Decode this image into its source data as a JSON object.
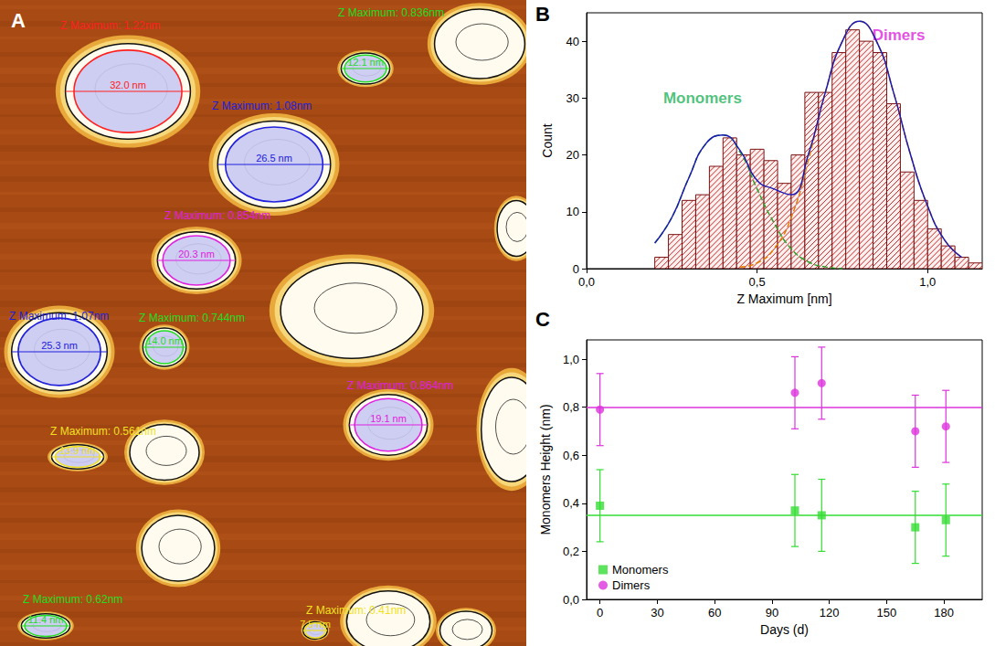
{
  "chart_data": [
    {
      "type": "afm_image",
      "panel_label": "A",
      "particles": [
        {
          "height_label": "Z Maximum: 1.22nm",
          "diameter_label": "32.0 nm",
          "color": "#ff2020"
        },
        {
          "height_label": "Z Maximum: 0.836nm",
          "diameter_label": "12.1 nm",
          "color": "#22dd22"
        },
        {
          "height_label": "Z Maximum: 1.08nm",
          "diameter_label": "26.5 nm",
          "color": "#2020dd"
        },
        {
          "height_label": "Z Maximum: 0.854nm",
          "diameter_label": "20.3 nm",
          "color": "#e020e0"
        },
        {
          "height_label": "Z Maximum: 1.07nm",
          "diameter_label": "25.3 nm",
          "color": "#2020dd"
        },
        {
          "height_label": "Z Maximum: 0.744nm",
          "diameter_label": "14.0 nm",
          "color": "#22dd22"
        },
        {
          "height_label": "Z Maximum: 0.864nm",
          "diameter_label": "19.1 nm",
          "color": "#e020e0"
        },
        {
          "height_label": "Z Maximum: 0.561nm",
          "diameter_label": "13.9 nm",
          "color": "#f0e020"
        },
        {
          "height_label": "Z Maximum: 0.62nm",
          "diameter_label": "11.4 nm",
          "color": "#22dd22"
        },
        {
          "height_label": "Z Maximum: 0.41nm",
          "diameter_label": "7.5 nm",
          "color": "#f0e020"
        }
      ]
    },
    {
      "type": "histogram",
      "panel_label": "B",
      "x_label": "Z Maximum [nm]",
      "y_label": "Count",
      "bins": [
        0.2,
        0.24,
        0.28,
        0.32,
        0.36,
        0.4,
        0.44,
        0.48,
        0.52,
        0.56,
        0.6,
        0.64,
        0.68,
        0.72,
        0.76,
        0.8,
        0.84,
        0.88,
        0.92,
        0.96,
        1.0,
        1.04,
        1.08,
        1.12,
        1.16
      ],
      "values": [
        2,
        6,
        12,
        13,
        18,
        23,
        20,
        21,
        19,
        15,
        20,
        31,
        31,
        38,
        42,
        40,
        38,
        29,
        17,
        12,
        7,
        4,
        2,
        1
      ],
      "color": "#c62828",
      "xlim": [
        0,
        1.16
      ],
      "xticks": [
        {
          "value": 0,
          "label": "0,0"
        },
        {
          "value": 0.5,
          "label": "0,5"
        },
        {
          "value": 1,
          "label": "1,0"
        }
      ],
      "ylim": [
        0,
        45
      ],
      "yticks": [
        0,
        10,
        20,
        30,
        40
      ],
      "grid": false,
      "fits": [
        {
          "x": [
            0.2,
            0.25,
            0.3,
            0.35,
            0.4,
            0.45,
            0.5,
            0.55,
            0.6,
            0.65,
            0.7,
            0.75
          ],
          "values": [
            4.5,
            9,
            16,
            22,
            23.5,
            20.5,
            14,
            8,
            3.5,
            1.2,
            0.3,
            0
          ],
          "color": "#2ca02c",
          "line_style": "dashed"
        },
        {
          "x": [
            0.45,
            0.5,
            0.55,
            0.6,
            0.65,
            0.7,
            0.75,
            0.8,
            0.85,
            0.9,
            0.95,
            1.0,
            1.05,
            1.1
          ],
          "values": [
            0.3,
            1,
            3.5,
            9,
            19,
            31,
            40,
            43.5,
            40,
            31,
            20,
            11,
            5,
            2
          ],
          "color": "#e07b00",
          "line_style": "dashed"
        },
        {
          "x": [
            0.2,
            0.25,
            0.3,
            0.35,
            0.4,
            0.45,
            0.5,
            0.55,
            0.6,
            0.65,
            0.7,
            0.75,
            0.8,
            0.85,
            0.9,
            0.95,
            1.0,
            1.05,
            1.1
          ],
          "values": [
            4.5,
            9,
            16,
            22,
            23.5,
            20.8,
            15.5,
            14,
            13,
            20,
            31,
            40,
            43.5,
            40,
            31,
            20,
            11,
            5,
            2
          ],
          "color": "#1a1ab4",
          "line_style": "solid"
        }
      ],
      "annotations": [
        {
          "text": "Monomers",
          "x": 0.34,
          "y": 30,
          "color": "#1fb35a"
        },
        {
          "text": "Dimers",
          "x": 0.915,
          "y": 41,
          "color": "#dd22dd"
        }
      ]
    },
    {
      "type": "scatter",
      "panel_label": "C",
      "x_label": "Days (d)",
      "y_label": "Monomers Height (nm)",
      "x": [
        0,
        102,
        116,
        165,
        181
      ],
      "series": [
        {
          "name": "Monomers",
          "color": "#33dd33",
          "marker": "square",
          "values": [
            0.39,
            0.37,
            0.35,
            0.3,
            0.33
          ],
          "errors": [
            0.15,
            0.15,
            0.15,
            0.15,
            0.15
          ],
          "mean": 0.355
        },
        {
          "name": "Dimers",
          "color": "#dd33dd",
          "marker": "circle",
          "values": [
            0.79,
            0.86,
            0.9,
            0.7,
            0.72
          ],
          "errors": [
            0.15,
            0.15,
            0.15,
            0.15,
            0.15
          ],
          "mean": 0.8
        }
      ],
      "xlim": [
        -7,
        200
      ],
      "xticks": [
        0,
        30,
        60,
        90,
        120,
        150,
        180
      ],
      "ylim": [
        0,
        1.08
      ],
      "yticks": [
        {
          "value": 0,
          "label": "0,0"
        },
        {
          "value": 0.2,
          "label": "0,2"
        },
        {
          "value": 0.4,
          "label": "0,4"
        },
        {
          "value": 0.6,
          "label": "0,6"
        },
        {
          "value": 0.8,
          "label": "0,8"
        },
        {
          "value": 1.0,
          "label": "1,0"
        }
      ],
      "grid": false,
      "legend": "lower left"
    }
  ]
}
